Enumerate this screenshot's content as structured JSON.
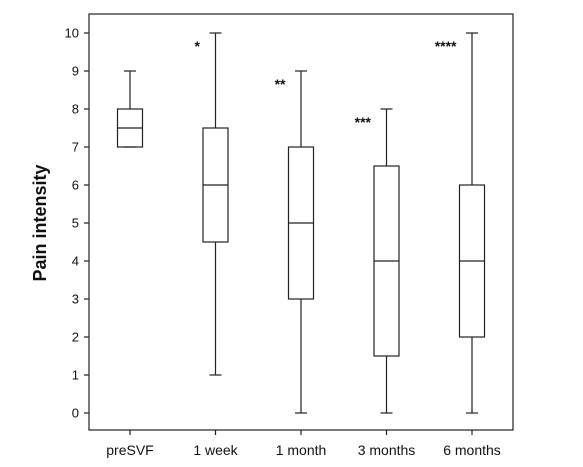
{
  "chart_data": {
    "type": "boxplot",
    "ylabel": "Pain intensity",
    "xlabel": "",
    "ylim": [
      0,
      10
    ],
    "yticks": [
      0,
      1,
      2,
      3,
      4,
      5,
      6,
      7,
      8,
      9,
      10
    ],
    "categories": [
      "preSVF",
      "1 week",
      "1 month",
      "3 months",
      "6 months"
    ],
    "boxes": [
      {
        "category": "preSVF",
        "min": 7,
        "q1": 7,
        "median": 7.5,
        "q3": 8,
        "max": 9,
        "significance": ""
      },
      {
        "category": "1 week",
        "min": 1,
        "q1": 4.5,
        "median": 6,
        "q3": 7.5,
        "max": 10,
        "significance": "*"
      },
      {
        "category": "1 month",
        "min": 0,
        "q1": 3,
        "median": 5,
        "q3": 7,
        "max": 9,
        "significance": "**"
      },
      {
        "category": "3 months",
        "min": 0,
        "q1": 1.5,
        "median": 4,
        "q3": 6.5,
        "max": 8,
        "significance": "***"
      },
      {
        "category": "6 months",
        "min": 0,
        "q1": 2,
        "median": 4,
        "q3": 6,
        "max": 10,
        "significance": "****"
      }
    ],
    "grid": false,
    "legend": false
  }
}
